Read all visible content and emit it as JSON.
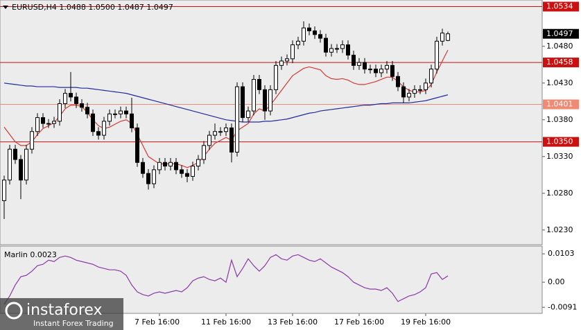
{
  "chart_data": {
    "type": "candlestick",
    "header": "EURUSD,H4  1.0488 1.0500 1.0487 1.0497",
    "categories": [
      null,
      null,
      null,
      null,
      null,
      null,
      null,
      null,
      null,
      null,
      null,
      null,
      null,
      null,
      null,
      null,
      null,
      null,
      null,
      null,
      null,
      null,
      null,
      null,
      null,
      null,
      null,
      null,
      "7 Feb 16:00",
      null,
      null,
      null,
      null,
      null,
      null,
      null,
      null,
      null,
      null,
      null,
      "11 Feb 16:00",
      null,
      null,
      null,
      null,
      null,
      null,
      null,
      null,
      null,
      null,
      null,
      "13 Feb 16:00",
      null,
      null,
      null,
      null,
      null,
      null,
      null,
      null,
      null,
      null,
      null,
      "17 Feb 16:00",
      null,
      null,
      null,
      null,
      null,
      null,
      null,
      null,
      null,
      null,
      null,
      "19 Feb 16:00",
      null,
      null,
      null,
      null
    ],
    "open": [
      1.027,
      1.0298,
      1.034,
      1.0326,
      1.0298,
      1.034,
      1.0364,
      1.0383,
      1.0375,
      1.0375,
      1.0378,
      1.0402,
      1.0416,
      1.0411,
      1.0402,
      1.0397,
      1.0388,
      1.0364,
      1.0359,
      1.0378,
      1.0388,
      1.0388,
      1.0392,
      1.0388,
      1.0369,
      1.0322,
      1.0307,
      1.0293,
      1.0312,
      1.0322,
      1.0317,
      1.0322,
      1.0312,
      1.0307,
      1.0303,
      1.0317,
      1.0326,
      1.0345,
      1.0359,
      1.0364,
      1.0364,
      1.0369,
      1.0336,
      1.0425,
      1.0383,
      1.0392,
      1.0435,
      1.0421,
      1.0392,
      1.0421,
      1.0454,
      1.046,
      1.0463,
      1.0482,
      1.0487,
      1.0505,
      1.0501,
      1.0496,
      1.0491,
      1.0472,
      1.0477,
      1.0477,
      1.0482,
      1.0468,
      1.0454,
      1.0458,
      1.0449,
      1.0449,
      1.0444,
      1.0449,
      1.0454,
      1.0439,
      1.0425,
      1.0411,
      1.0416,
      1.0421,
      1.0421,
      1.043,
      1.0449,
      1.0487,
      1.0488
    ],
    "high": [
      1.0304,
      1.0346,
      1.0346,
      1.0332,
      1.0346,
      1.037,
      1.0389,
      1.0389,
      1.0381,
      1.0384,
      1.0408,
      1.0422,
      1.0445,
      1.0417,
      1.0408,
      1.0403,
      1.0394,
      1.037,
      1.0384,
      1.0394,
      1.0394,
      1.0398,
      1.0398,
      1.041,
      1.0375,
      1.0328,
      1.0313,
      1.0318,
      1.0328,
      1.0328,
      1.0328,
      1.0328,
      1.0318,
      1.0313,
      1.0323,
      1.0332,
      1.0351,
      1.0365,
      1.0375,
      1.037,
      1.0375,
      1.0375,
      1.0431,
      1.0431,
      1.0398,
      1.0441,
      1.0441,
      1.0427,
      1.0427,
      1.046,
      1.0466,
      1.0469,
      1.0488,
      1.0493,
      1.0514,
      1.0511,
      1.0507,
      1.0502,
      1.0497,
      1.0483,
      1.0483,
      1.0488,
      1.0488,
      1.0474,
      1.0464,
      1.0464,
      1.0455,
      1.0455,
      1.0455,
      1.046,
      1.046,
      1.0445,
      1.0431,
      1.0422,
      1.0427,
      1.0427,
      1.0436,
      1.0455,
      1.0493,
      1.0504,
      1.05
    ],
    "low": [
      1.0245,
      1.0292,
      1.032,
      1.0272,
      1.0292,
      1.0334,
      1.0358,
      1.0369,
      1.0369,
      1.0369,
      1.0372,
      1.0396,
      1.0405,
      1.0396,
      1.0391,
      1.0382,
      1.0358,
      1.0353,
      1.0353,
      1.0372,
      1.0382,
      1.0382,
      1.0382,
      1.0363,
      1.0316,
      1.0301,
      1.0285,
      1.0287,
      1.0306,
      1.0311,
      1.0311,
      1.0306,
      1.0301,
      1.0295,
      1.0297,
      1.0311,
      1.032,
      1.0339,
      1.0353,
      1.0358,
      1.0358,
      1.0322,
      1.033,
      1.0377,
      1.0377,
      1.0386,
      1.0415,
      1.038,
      1.0386,
      1.0415,
      1.0448,
      1.0454,
      1.0457,
      1.0476,
      1.0481,
      1.0495,
      1.049,
      1.0485,
      1.0466,
      1.0466,
      1.0471,
      1.0471,
      1.0462,
      1.0448,
      1.0448,
      1.0443,
      1.0443,
      1.0438,
      1.0438,
      1.0443,
      1.0433,
      1.0419,
      1.0403,
      1.0405,
      1.041,
      1.0415,
      1.0415,
      1.0424,
      1.0443,
      1.0481,
      1.0487
    ],
    "close": [
      1.0298,
      1.034,
      1.0326,
      1.0298,
      1.034,
      1.0364,
      1.0383,
      1.0375,
      1.0375,
      1.0378,
      1.0402,
      1.0416,
      1.0411,
      1.0402,
      1.0397,
      1.0388,
      1.0364,
      1.0359,
      1.0378,
      1.0388,
      1.0388,
      1.0392,
      1.0388,
      1.0369,
      1.0322,
      1.0307,
      1.0293,
      1.0312,
      1.0322,
      1.0317,
      1.0322,
      1.0312,
      1.0307,
      1.0303,
      1.0317,
      1.0326,
      1.0345,
      1.0359,
      1.0364,
      1.0364,
      1.0369,
      1.0336,
      1.0425,
      1.0383,
      1.0392,
      1.0435,
      1.0421,
      1.0392,
      1.0421,
      1.0454,
      1.046,
      1.0463,
      1.0482,
      1.0487,
      1.0505,
      1.0501,
      1.0496,
      1.0491,
      1.0472,
      1.0477,
      1.0477,
      1.0482,
      1.0468,
      1.0454,
      1.0458,
      1.0449,
      1.0449,
      1.0444,
      1.0449,
      1.0454,
      1.0439,
      1.0425,
      1.0411,
      1.0416,
      1.0421,
      1.0421,
      1.043,
      1.0449,
      1.0487,
      1.0498,
      1.0497
    ],
    "bull_color": "#ffffff",
    "bear_color": "#000000",
    "overlays": [
      {
        "color": "#d43a34",
        "values": [
          1.037,
          1.036,
          1.035,
          1.0345,
          1.0345,
          1.035,
          1.036,
          1.0368,
          1.0372,
          1.0376,
          1.0385,
          1.0395,
          1.04,
          1.04,
          1.0398,
          1.039,
          1.038,
          1.0372,
          1.0368,
          1.037,
          1.0374,
          1.0378,
          1.038,
          1.0375,
          1.036,
          1.0345,
          1.033,
          1.0325,
          1.032,
          1.032,
          1.032,
          1.032,
          1.0318,
          1.0315,
          1.0318,
          1.0322,
          1.033,
          1.034,
          1.0348,
          1.0352,
          1.0356,
          1.0352,
          1.0365,
          1.037,
          1.0375,
          1.0388,
          1.0395,
          1.0392,
          1.04,
          1.041,
          1.042,
          1.043,
          1.044,
          1.0445,
          1.045,
          1.0452,
          1.045,
          1.0448,
          1.044,
          1.0436,
          1.0435,
          1.0436,
          1.0434,
          1.043,
          1.0428,
          1.0428,
          1.043,
          1.0432,
          1.0435,
          1.0438,
          1.0438,
          1.0432,
          1.0425,
          1.042,
          1.0418,
          1.0418,
          1.042,
          1.0428,
          1.0445,
          1.046,
          1.0475
        ]
      },
      {
        "color": "#1f2b9c",
        "values": [
          1.043,
          1.0429,
          1.0428,
          1.0427,
          1.0426,
          1.0426,
          1.0425,
          1.0425,
          1.0425,
          1.0425,
          1.0424,
          1.0424,
          1.0424,
          1.0424,
          1.0423,
          1.0423,
          1.0422,
          1.0421,
          1.042,
          1.0419,
          1.0418,
          1.0417,
          1.0416,
          1.0414,
          1.0412,
          1.041,
          1.0408,
          1.0406,
          1.0404,
          1.0402,
          1.04,
          1.0398,
          1.0396,
          1.0394,
          1.0392,
          1.039,
          1.0388,
          1.0386,
          1.0384,
          1.0382,
          1.038,
          1.0379,
          1.0378,
          1.0377,
          1.0377,
          1.0377,
          1.0377,
          1.0378,
          1.0378,
          1.0379,
          1.038,
          1.0381,
          1.0383,
          1.0385,
          1.0387,
          1.0389,
          1.039,
          1.0392,
          1.0393,
          1.0394,
          1.0395,
          1.0396,
          1.0397,
          1.0398,
          1.0399,
          1.04,
          1.04,
          1.0401,
          1.0402,
          1.0402,
          1.0403,
          1.0403,
          1.0403,
          1.0403,
          1.0404,
          1.0405,
          1.0406,
          1.0408,
          1.041,
          1.0412,
          1.0414
        ]
      }
    ],
    "ylim": [
      1.021,
      1.0543
    ],
    "yticks": [
      {
        "value": 1.048,
        "label": "1.0480"
      },
      {
        "value": 1.043,
        "label": "1.0430"
      },
      {
        "value": 1.038,
        "label": "1.0380"
      },
      {
        "value": 1.033,
        "label": "1.0330"
      },
      {
        "value": 1.028,
        "label": "1.0280"
      },
      {
        "value": 1.023,
        "label": "1.0230"
      }
    ],
    "levels": [
      1.0534,
      1.0458,
      1.0401,
      {
        "value": 1.035,
        "label": "1.0350"
      }
    ],
    "level_colors": [
      "#cc1010",
      "#cc1010",
      "#f08a74",
      "#cc1010"
    ],
    "current_price": 1.0497,
    "indicator": {
      "title": "Marlin 0.0023",
      "color": "#8a3aa8",
      "values": [
        -0.008,
        -0.005,
        -0.001,
        0.002,
        0.0025,
        0.004,
        0.006,
        0.0065,
        0.008,
        0.0075,
        0.009,
        0.0095,
        0.009,
        0.008,
        0.0075,
        0.007,
        0.0065,
        0.0055,
        0.005,
        0.0045,
        0.0045,
        0.004,
        0.0025,
        -0.001,
        -0.0035,
        -0.0045,
        -0.005,
        -0.004,
        -0.0035,
        -0.004,
        -0.0035,
        -0.003,
        -0.0035,
        -0.002,
        0.0005,
        0.0015,
        0.002,
        0.001,
        0.0005,
        0.0015,
        0.0,
        0.008,
        0.002,
        0.005,
        0.0085,
        0.006,
        0.004,
        0.006,
        0.009,
        0.01,
        0.0085,
        0.008,
        0.0095,
        0.01,
        0.009,
        0.008,
        0.0075,
        0.0085,
        0.007,
        0.0055,
        0.0045,
        0.0035,
        0.002,
        0.0,
        -0.001,
        -0.002,
        -0.0025,
        -0.0025,
        -0.003,
        -0.002,
        -0.004,
        -0.007,
        -0.006,
        -0.005,
        -0.0045,
        -0.0035,
        -0.002,
        0.003,
        0.0035,
        0.001,
        0.0023
      ],
      "ylim": [
        -0.0113,
        0.0131
      ],
      "yticks": [
        0.0103,
        {
          "value": 0,
          "label": "0.00"
        },
        -0.0091
      ]
    }
  },
  "watermark": {
    "name": "instaforex",
    "tagline": "Instant Forex Trading"
  }
}
